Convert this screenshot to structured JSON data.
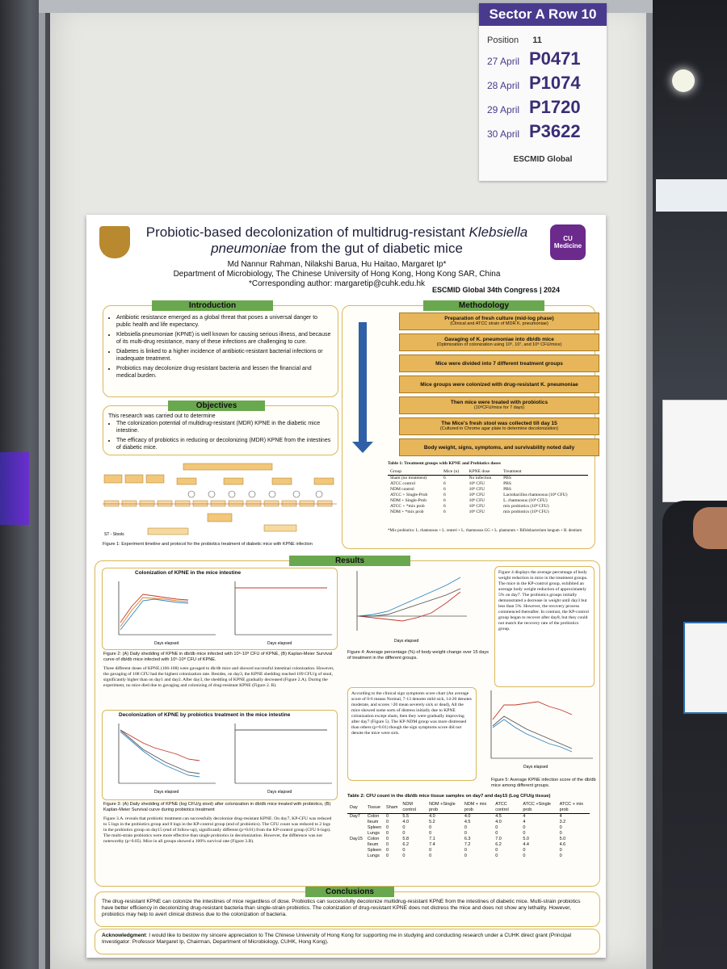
{
  "signcard": {
    "header": "Sector A Row 10",
    "position_label": "Position",
    "position_value": "11",
    "slots": [
      {
        "date": "27 April",
        "code": "P0471"
      },
      {
        "date": "28 April",
        "code": "P1074"
      },
      {
        "date": "29 April",
        "code": "P1720"
      },
      {
        "date": "30 April",
        "code": "P3622"
      }
    ],
    "logo": "ESCMID Global"
  },
  "poster": {
    "title_a": "Probiotic-based decolonization of multidrug-resistant ",
    "title_b": "Klebsiella pneumoniae",
    "title_c": " from the gut of diabetic mice",
    "authors": "Md Nannur Rahman, Nilakshi Barua, Hu Haitao, Margaret Ip*",
    "affiliation": "Department of Microbiology, The Chinese University of Hong Kong, Hong Kong SAR, China",
    "corresponding": "*Corresponding author: margaretip@cuhk.edu.hk",
    "conference": "ESCMID Global  34th Congress | 2024",
    "cu_logo": "CU Medicine"
  },
  "introduction": {
    "heading": "Introduction",
    "bullets": [
      "Antibiotic resistance emerged as a global threat that poses a universal danger to public health and life expectancy.",
      "Klebsiella pneumoniae (KPNE) is well known for causing serious illness, and because of its multi-drug resistance, many of these infections are challenging to cure.",
      "Diabetes is linked to a higher incidence of antibiotic-resistant bacterial infections or inadequate treatment.",
      "Probiotics may decolonize drug-resistant bacteria and lessen the financial and medical burden."
    ]
  },
  "objectives": {
    "heading": "Objectives",
    "lead": "This research was carried out to determine",
    "bullets": [
      "The colonization potential of multidrug-resistant (MDR) KPNE in the diabetic mice intestine.",
      "The efficacy of probiotics in reducing or decolonizing (MDR) KPNE from the intestines of diabetic mice."
    ],
    "figure_caption": "Figure 1: Experiment timeline and protocol for the probiotics treatment of diabetic mice with KPNE infection",
    "st_label": "ST - Stools"
  },
  "methodology": {
    "heading": "Methodology",
    "steps": [
      {
        "title": "Preparation of fresh culture (mid-log phase)",
        "sub": "(Clinical and ATCC strain of MDR K. pneumoniae)"
      },
      {
        "title": "Gavaging of K. pneumoniae into db/db mice",
        "sub": "(Optimization of colonization using 10⁶, 10⁷, and 10⁸ CFU/mice)"
      },
      {
        "title": "Mice were divided into 7 different treatment groups",
        "sub": ""
      },
      {
        "title": "Mice groups were colonized with drug-resistant K. pneumoniae",
        "sub": ""
      },
      {
        "title": "Then mice were treated with probiotics",
        "sub": "(10⁸CFU/mice for 7 days)"
      },
      {
        "title": "The Mice's fresh stool was collected till day 15",
        "sub": "(Cultured in Chrome agar plate to determine decolonization)"
      },
      {
        "title": "Body weight, signs, symptoms, and survivability noted daily",
        "sub": ""
      }
    ],
    "table_title": "Table 1: Treatment groups with KPNE and Probiotics doses",
    "table_headers": [
      "Group",
      "Mice (n)",
      "KPNE dose",
      "Treatment"
    ],
    "table_rows": [
      [
        "Sham (no treatment)",
        "6",
        "No infection",
        "PBS"
      ],
      [
        "ATCC control",
        "6",
        "10⁸ CFU",
        "PBS"
      ],
      [
        "NDM control",
        "6",
        "10⁸ CFU",
        "PBS"
      ],
      [
        "ATCC + Single-Prob",
        "6",
        "10⁸ CFU",
        "Lactobacillus rhamnosus (10⁸ CFU)"
      ],
      [
        "NDM + Single-Prob",
        "6",
        "10⁸ CFU",
        "L. rhamnosus (10⁸ CFU)"
      ],
      [
        "ATCC + *mix prob",
        "6",
        "10⁸ CFU",
        "mix probiotics (10⁸ CFU)"
      ],
      [
        "NDM + *mix prob",
        "6",
        "10⁸ CFU",
        "mix probiotics (10⁸ CFU)"
      ]
    ],
    "table_note": "*Mix probiotics: L. rhamnosus + L. reuteri + L. rhamnosus GG + L. plantarum + Bifidobacterium longum + B. dentium"
  },
  "results": {
    "heading": "Results",
    "fig2_title": "Colonization of KPNE in the mice intestine",
    "fig2_caption": "Figure 2: (A) Daily shedding of KPNE in db/db mice infected with 10⁶-10⁸ CFU of KPNE, (B) Kaplan-Meier Survival curve of db/db mice infected with 10⁶-10⁸ CFU of KPNE.",
    "fig2_text": "Three different doses of KPNE (106-108) were gavaged to db/db mice and showed successful intestinal colonization. However, the gavaging of 108 CFU had the highest colonization rate. Besides, on day3, the KPNE shedding reached 109 CFU/g of stool, significantly higher than on day1 and day2. After day3, the shedding of KPNE gradually decreased (Figure 2.A). During the experiment, no mice died due to gavaging and colonizing of drug-resistant KPNE (Figure 2. B).",
    "fig3_title": "Decolonization of KPNE by probiotics treatment in the mice intestine",
    "fig3_caption": "Figure 3: (A) Daily shedding of KPNE (log CFU/g stool) after colonization in db/db mice treated with probiotics, (B) Kaplan-Meier Survival curve during probiotics treatment",
    "fig3_text": "Figure 3.A. reveals that probiotic treatment can successfully decolonize drug-resistant KPNE. On day7, KP-CFU was reduced to 5 logs in the probiotics group and 8 logs in the KP-control group (end of probiotics). The CFU count was reduced to 2 logs in the probiotics group on day15 (end of follow-up), significantly different (p=0.01) from the KP-control group (CFU 6-logs). The multi-strain probiotics were more effective than single probiotics in decolonization. However, the difference was not noteworthy (p>0.05). Mice in all groups showed a 100% survival rate (Figure 3.B).",
    "fig4_caption": "Figure 4: Average percentage (%) of body weight change over 15 days of treatment in the different groups.",
    "fig4_text": "Figure 4 displays the average percentage of body weight reduction in mice in the treatment groups. The mice in the KP-control group, exhibited an average body weight reduction of approximately 5% on day7. The probiotics groups initially demonstrated a decrease in weight until day3 but less than 5%. However, the recovery process commenced thereafter. In contrast, the KP-control group began to recover after day8, but they could not match the recovery rate of the probiotics group.",
    "fig5_text": "According to the clinical sign symptoms score chart (An average score of 0-6 means Normal, 7-13 denotes mild sick, 14-20 denotes moderate, and scores >20 mean severely sick or dead), All the mice showed some sorts of distress initially due to KPNE colonization except sham, then they were gradually improving after day7 (Figure 5). The KP-NDM group was more distressed than others (p=0.01) though the sign symptoms score did not denote the mice were sick.",
    "fig5_caption": "Figure 5: Average KPNE infection score of the db/db mice among different groups.",
    "x_label": "Days elapsed",
    "legend_groups": [
      "Sham",
      "NDM control",
      "NDM single prob",
      "NDM mix prob",
      "ATCC control",
      "ATCC Single prob",
      "ATCC mix prob"
    ],
    "table2_title": "Table 2: CFU count in the db/db mice tissue samples on day7 and day15 (Log CFU/g tissue)",
    "table2_headers": [
      "Day",
      "Tissue",
      "Sham",
      "NDM control",
      "NDM +Single prob",
      "NDM + mix prob",
      "ATCC control",
      "ATCC +Single prob",
      "ATCC + mix prob"
    ],
    "table2_rows": [
      [
        "Day7",
        "Colon",
        "0",
        "5.5",
        "4.0",
        "4.0",
        "4.5",
        "4",
        "4"
      ],
      [
        "",
        "Ileum",
        "0",
        "4.0",
        "5.2",
        "4.5",
        "4.0",
        "4",
        "3.2"
      ],
      [
        "",
        "Spleen",
        "0",
        "0",
        "0",
        "0",
        "0",
        "0",
        "0"
      ],
      [
        "",
        "Lungs",
        "0",
        "0",
        "0",
        "0",
        "0",
        "0",
        "0"
      ],
      [
        "Day15",
        "Colon",
        "0",
        "5.8",
        "7.1",
        "6.3",
        "7.0",
        "5.0",
        "5.0"
      ],
      [
        "",
        "Ileum",
        "0",
        "6.2",
        "7.4",
        "7.2",
        "6.2",
        "4.4",
        "4.6"
      ],
      [
        "",
        "Spleen",
        "0",
        "0",
        "0",
        "0",
        "0",
        "0",
        "0"
      ],
      [
        "",
        "Lungs",
        "0",
        "0",
        "0",
        "0",
        "0",
        "0",
        "0"
      ]
    ]
  },
  "conclusions": {
    "heading": "Conclusions",
    "text": "The drug-resistant KPNE can colonize the intestines of mice regardless of dose. Probiotics can successfully decolonize multidrug-resistant KPNE from the intestines of diabetic mice. Multi-strain probiotics have better efficiency in decolonizing drug-resistant bacteria than single-strain probiotics. The colonization of drug-resistant KPNE does not distress the mice and does not show any lethality. However, probiotics may help to avert clinical distress due to the colonization of bacteria."
  },
  "acknowledgment": {
    "label": "Acknowledgment",
    "text": ": I would like to bestow my sincere appreciation to The Chinese University of Hong Kong for supporting me in studying and conducting research under a CUHK direct grant (Principal Investigator: Professor Margaret Ip, Chairman, Department of Microbiology, CUHK, Hong Kong)."
  }
}
